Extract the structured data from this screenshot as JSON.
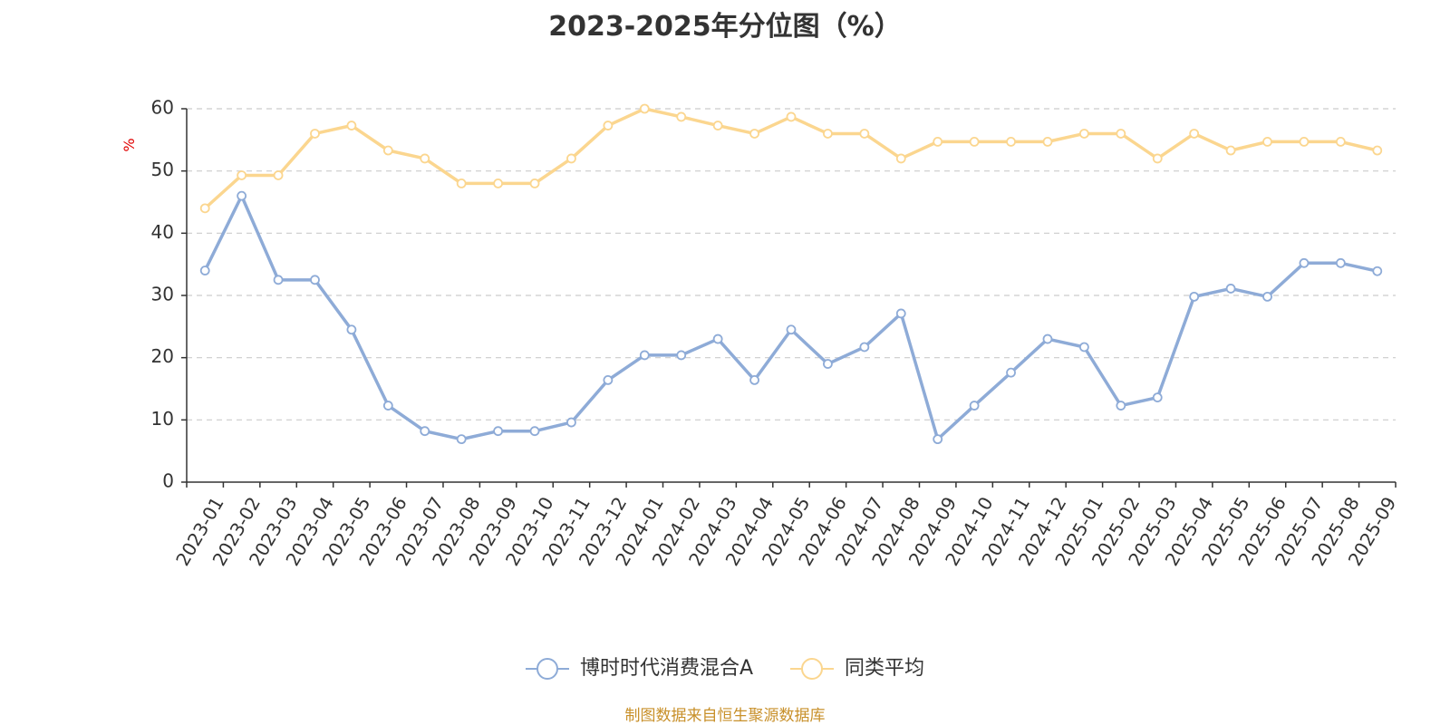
{
  "chart_data": {
    "type": "line",
    "title": "2023-2025年分位图（%）",
    "ylabel": "%",
    "xlabel": "",
    "ylim": [
      0,
      60
    ],
    "yticks": [
      0,
      10,
      20,
      30,
      40,
      50,
      60
    ],
    "grid": true,
    "legend_position": "bottom",
    "categories": [
      "2023-01",
      "2023-02",
      "2023-03",
      "2023-04",
      "2023-05",
      "2023-06",
      "2023-07",
      "2023-08",
      "2023-09",
      "2023-10",
      "2023-11",
      "2023-12",
      "2024-01",
      "2024-02",
      "2024-03",
      "2024-04",
      "2024-05",
      "2024-06",
      "2024-07",
      "2024-08",
      "2024-09",
      "2024-10",
      "2024-11",
      "2024-12",
      "2025-01",
      "2025-02",
      "2025-03",
      "2025-04",
      "2025-05",
      "2025-06",
      "2025-07",
      "2025-08",
      "2025-09"
    ],
    "series": [
      {
        "name": "博时时代消费混合A",
        "color": "#8eabd7",
        "values": [
          34,
          46,
          32.5,
          32.5,
          24.5,
          12.3,
          8.2,
          6.9,
          8.2,
          8.2,
          9.6,
          16.4,
          20.4,
          20.4,
          23,
          16.4,
          24.5,
          19,
          21.7,
          27.1,
          6.9,
          12.3,
          17.6,
          23,
          21.7,
          12.3,
          13.6,
          29.8,
          31.1,
          29.8,
          35.2,
          35.2,
          33.9
        ]
      },
      {
        "name": "同类平均",
        "color": "#fbd68f",
        "values": [
          44,
          49.3,
          49.3,
          56,
          57.3,
          53.3,
          52,
          48,
          48,
          48,
          52,
          57.3,
          60,
          58.7,
          57.3,
          56,
          58.7,
          56,
          56,
          52,
          54.7,
          54.7,
          54.7,
          54.7,
          56,
          56,
          52,
          56,
          53.3,
          54.7,
          54.7,
          54.7,
          53.3
        ]
      }
    ]
  },
  "source_note": "制图数据来自恒生聚源数据库"
}
